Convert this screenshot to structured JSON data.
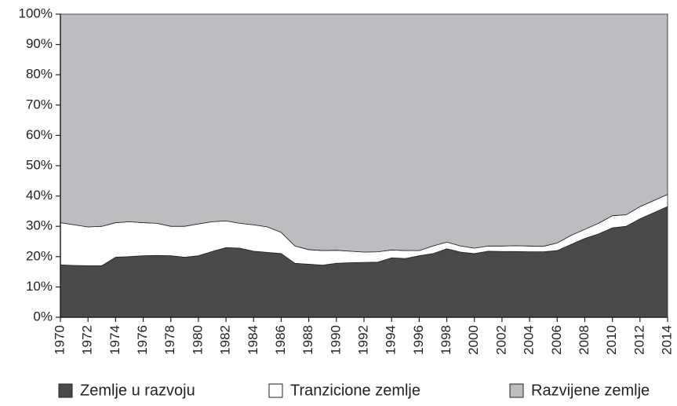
{
  "chart_data": {
    "type": "stacked-area",
    "x": [
      1970,
      1971,
      1972,
      1973,
      1974,
      1975,
      1976,
      1977,
      1978,
      1979,
      1980,
      1981,
      1982,
      1983,
      1984,
      1985,
      1986,
      1987,
      1988,
      1989,
      1990,
      1991,
      1992,
      1993,
      1994,
      1995,
      1996,
      1997,
      1998,
      1999,
      2000,
      2001,
      2002,
      2003,
      2004,
      2005,
      2006,
      2007,
      2008,
      2009,
      2010,
      2011,
      2012,
      2013,
      2014
    ],
    "xlim": [
      1970,
      2014
    ],
    "xticks": [
      1970,
      1972,
      1974,
      1976,
      1978,
      1980,
      1982,
      1984,
      1986,
      1988,
      1990,
      1992,
      1994,
      1996,
      1998,
      2000,
      2002,
      2004,
      2006,
      2008,
      2010,
      2012,
      2014
    ],
    "ylim": [
      0,
      100
    ],
    "yticks": [
      {
        "value": 0,
        "label": "0%"
      },
      {
        "value": 10,
        "label": "10%"
      },
      {
        "value": 20,
        "label": "20%"
      },
      {
        "value": 30,
        "label": "30%"
      },
      {
        "value": 40,
        "label": "40%"
      },
      {
        "value": 50,
        "label": "50%"
      },
      {
        "value": 60,
        "label": "60%"
      },
      {
        "value": 70,
        "label": "70%"
      },
      {
        "value": 80,
        "label": "80%"
      },
      {
        "value": 90,
        "label": "90%"
      },
      {
        "value": 100,
        "label": "100%"
      }
    ],
    "legend": "bottom",
    "series": [
      {
        "name": "Zemlje u razvoju",
        "color": "#4a4a4a",
        "values": [
          17.3,
          17.1,
          17,
          17,
          19.8,
          20,
          20.3,
          20.4,
          20.3,
          19.8,
          20.3,
          21.7,
          23,
          22.8,
          21.8,
          21.4,
          21,
          17.8,
          17.5,
          17.2,
          17.8,
          18,
          18.1,
          18.2,
          19.6,
          19.4,
          20.3,
          21,
          22.6,
          21.5,
          21,
          21.8,
          21.7,
          21.7,
          21.6,
          21.6,
          22,
          24,
          26,
          27.5,
          29.5,
          30,
          32.5,
          34.5,
          36.5
        ]
      },
      {
        "name": "Tranzicione zemlje",
        "color": "#ffffff",
        "values": [
          13.9,
          13.4,
          12.8,
          13,
          11.4,
          11.5,
          10.9,
          10.6,
          9.7,
          10.2,
          10.5,
          9.8,
          8.8,
          8.2,
          8.7,
          8.4,
          7,
          5.7,
          4.8,
          4.8,
          4.3,
          3.8,
          3.4,
          3.4,
          2.6,
          2.6,
          1.7,
          2.5,
          2.2,
          2,
          1.8,
          1.7,
          1.8,
          1.9,
          1.9,
          1.8,
          2.5,
          3,
          3,
          3.5,
          4,
          3.8,
          4,
          4,
          4
        ]
      },
      {
        "name": "Razvijene zemlje",
        "color": "#bcbdc0",
        "values": [
          68.8,
          69.5,
          70.2,
          70,
          68.8,
          68.5,
          68.8,
          69,
          70,
          70,
          69.2,
          68.5,
          68.2,
          69,
          69.5,
          70.2,
          72,
          76.5,
          77.7,
          78,
          77.9,
          78.2,
          78.5,
          78.4,
          77.8,
          78,
          78,
          76.5,
          75.2,
          76.5,
          77.2,
          76.5,
          76.5,
          76.4,
          76.5,
          76.6,
          75.5,
          73,
          71,
          69,
          66.5,
          66.2,
          63.5,
          61.5,
          59.5
        ]
      }
    ]
  }
}
